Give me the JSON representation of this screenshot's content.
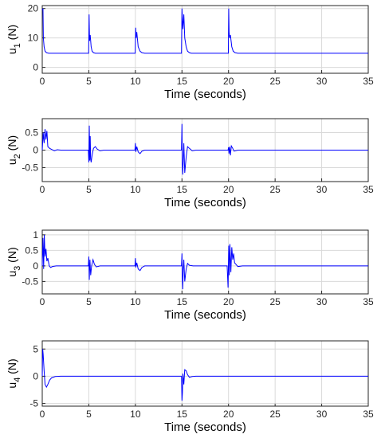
{
  "chart_data": [
    {
      "type": "line",
      "id": "u1",
      "xlabel": "Time (seconds)",
      "ylabel": "u",
      "ylabel_sub": "1",
      "ylabel_unit": "(N)",
      "xlim": [
        0,
        35
      ],
      "ylim": [
        -2,
        21
      ],
      "xticks": [
        0,
        5,
        10,
        15,
        20,
        25,
        30,
        35
      ],
      "yticks": [
        0,
        10,
        20
      ],
      "grid": true,
      "series": [
        {
          "color": "#0000ff",
          "x": [
            0,
            0.08,
            0.12,
            0.2,
            0.3,
            0.45,
            0.7,
            1.0,
            4.98,
            5.03,
            5.08,
            5.15,
            5.25,
            5.35,
            5.5,
            5.7,
            6.0,
            9.98,
            10.03,
            10.08,
            10.15,
            10.3,
            10.5,
            10.7,
            11.0,
            14.95,
            15.0,
            15.05,
            15.1,
            15.2,
            15.3,
            15.45,
            15.6,
            15.8,
            16.0,
            19.98,
            20.02,
            20.06,
            20.12,
            20.2,
            20.35,
            20.5,
            20.7,
            21.0,
            35
          ],
          "y": [
            19.5,
            20,
            10,
            7,
            5.5,
            5,
            4.8,
            4.8,
            4.8,
            18,
            9,
            11,
            7,
            5.5,
            5,
            4.8,
            4.8,
            4.8,
            13.5,
            10,
            12,
            7,
            5.5,
            5,
            4.8,
            4.8,
            20,
            16,
            13,
            18,
            10,
            7,
            5.5,
            5,
            4.8,
            4.8,
            20,
            12,
            10,
            11,
            7,
            5.5,
            5,
            4.8,
            4.8
          ]
        }
      ]
    },
    {
      "type": "line",
      "id": "u2",
      "xlabel": "Time (seconds)",
      "ylabel": "u",
      "ylabel_sub": "2",
      "ylabel_unit": "(N)",
      "xlim": [
        0,
        35
      ],
      "ylim": [
        -0.9,
        0.9
      ],
      "xticks": [
        0,
        5,
        10,
        15,
        20,
        25,
        30,
        35
      ],
      "yticks": [
        -0.5,
        0,
        0.5
      ],
      "yticklabels": [
        "-0.5",
        "0",
        "0.5"
      ],
      "grid": true,
      "series": [
        {
          "color": "#0000ff",
          "x": [
            0,
            0.1,
            0.2,
            0.3,
            0.4,
            0.5,
            0.6,
            0.8,
            1.0,
            1.3,
            1.6,
            2.0,
            4.95,
            5.0,
            5.05,
            5.1,
            5.15,
            5.2,
            5.25,
            5.35,
            5.5,
            5.7,
            5.9,
            6.2,
            6.6,
            9.95,
            10.0,
            10.05,
            10.15,
            10.3,
            10.5,
            10.7,
            11.0,
            14.95,
            15.0,
            15.04,
            15.08,
            15.14,
            15.2,
            15.3,
            15.45,
            15.6,
            15.8,
            16.1,
            16.5,
            19.95,
            20.0,
            20.05,
            20.12,
            20.2,
            20.3,
            20.45,
            20.6,
            21.0,
            35
          ],
          "y": [
            0,
            0.5,
            0.2,
            0.6,
            0.3,
            0.55,
            0.1,
            0.05,
            0.02,
            -0.02,
            0.01,
            0,
            0,
            -0.35,
            0.7,
            -0.3,
            0.4,
            -0.25,
            -0.35,
            -0.15,
            0.05,
            0.1,
            0.03,
            -0.02,
            0,
            0,
            0.2,
            -0.05,
            0.1,
            -0.05,
            -0.1,
            -0.03,
            0,
            0,
            0.75,
            -0.4,
            -0.7,
            -0.3,
            0.2,
            -0.65,
            -0.2,
            0.1,
            0.05,
            -0.02,
            0,
            0,
            0.08,
            -0.1,
            0.1,
            -0.15,
            0.12,
            0.05,
            -0.03,
            0,
            0
          ]
        }
      ]
    },
    {
      "type": "line",
      "id": "u3",
      "xlabel": "Time (seconds)",
      "ylabel": "u",
      "ylabel_sub": "3",
      "ylabel_unit": "(N)",
      "xlim": [
        0,
        35
      ],
      "ylim": [
        -0.9,
        1.15
      ],
      "xticks": [
        0,
        5,
        10,
        15,
        20,
        25,
        30,
        35
      ],
      "yticks": [
        -0.5,
        0,
        0.5,
        1
      ],
      "yticklabels": [
        "-0.5",
        "0",
        "0.5",
        "1"
      ],
      "grid": true,
      "series": [
        {
          "color": "#0000ff",
          "x": [
            0,
            0.08,
            0.15,
            0.22,
            0.3,
            0.4,
            0.5,
            0.6,
            0.75,
            0.9,
            1.1,
            1.5,
            4.95,
            5.0,
            5.05,
            5.12,
            5.2,
            5.3,
            5.45,
            5.6,
            5.8,
            6.2,
            9.95,
            10.0,
            10.05,
            10.15,
            10.3,
            10.5,
            10.7,
            11.0,
            14.95,
            15.0,
            15.04,
            15.08,
            15.14,
            15.2,
            15.3,
            15.45,
            15.6,
            15.8,
            16.2,
            19.85,
            19.95,
            20.02,
            20.08,
            20.15,
            20.25,
            20.35,
            20.45,
            20.55,
            20.65,
            20.8,
            21.0,
            21.5,
            35
          ],
          "y": [
            0,
            0.9,
            -0.1,
            1.0,
            0.3,
            0.55,
            0.15,
            0.25,
            0.0,
            -0.05,
            -0.02,
            0,
            0,
            0.3,
            -0.45,
            0.2,
            -0.3,
            0.0,
            0.2,
            0.05,
            -0.03,
            0,
            0,
            0.25,
            -0.05,
            0.1,
            -0.1,
            -0.15,
            -0.05,
            0,
            0,
            0.4,
            -0.35,
            -0.75,
            -0.1,
            0.2,
            -0.5,
            -0.1,
            0.08,
            0.02,
            0,
            0,
            -0.7,
            0.65,
            -0.3,
            0.7,
            -0.2,
            0.6,
            0.2,
            0.4,
            0.1,
            0.05,
            -0.02,
            0,
            0
          ]
        }
      ]
    },
    {
      "type": "line",
      "id": "u4",
      "xlabel": "Time (seconds)",
      "ylabel": "u",
      "ylabel_sub": "4",
      "ylabel_unit": "(N)",
      "xlim": [
        0,
        35
      ],
      "ylim": [
        -5.5,
        6.5
      ],
      "xticks": [
        0,
        5,
        10,
        15,
        20,
        25,
        30,
        35
      ],
      "yticks": [
        -5,
        0,
        5
      ],
      "grid": true,
      "series": [
        {
          "color": "#0000ff",
          "x": [
            0,
            0.05,
            0.1,
            0.2,
            0.3,
            0.45,
            0.6,
            0.8,
            1.0,
            1.4,
            2.0,
            14.95,
            15.0,
            15.05,
            15.1,
            15.2,
            15.3,
            15.45,
            15.6,
            15.8,
            16.1,
            16.5,
            35
          ],
          "y": [
            0,
            5,
            4,
            1,
            -1.5,
            -2,
            -1.5,
            -0.7,
            -0.3,
            -0.05,
            0,
            0,
            -4.5,
            -3,
            0.5,
            -1.5,
            1.2,
            1.0,
            0.3,
            -0.2,
            -0.05,
            0,
            0
          ]
        }
      ]
    }
  ]
}
